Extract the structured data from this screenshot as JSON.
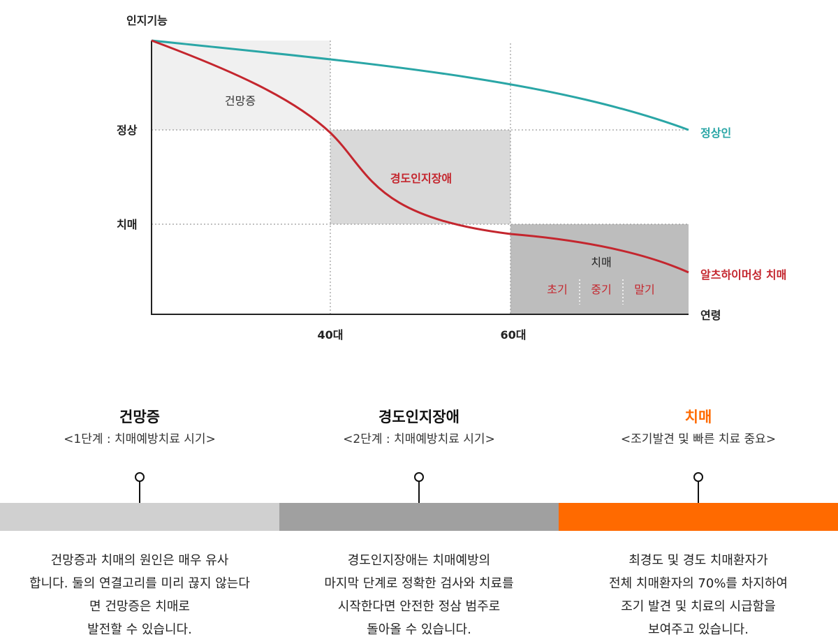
{
  "chart": {
    "y_axis_title": "인지기능",
    "x_axis_title": "연령",
    "y_levels": [
      "정상",
      "치매"
    ],
    "x_ticks": [
      "40대",
      "60대"
    ],
    "regions": {
      "forgetfulness": "건망증",
      "mci": "경도인지장애",
      "dementia": "치매",
      "dementia_stages": [
        "초기",
        "중기",
        "말기"
      ]
    },
    "line_labels": {
      "normal": "정상인",
      "alzheimer": "알츠하이머성 치매"
    },
    "colors": {
      "normal_line": "#2aa6a6",
      "alzheimer_line": "#c4262e",
      "region_light": "#f0f0f0",
      "region_mid": "#d9d9d9",
      "region_dark": "#bdbdbd"
    }
  },
  "stages": [
    {
      "title": "건망증",
      "subtitle": "<1단계 : 치매예방치료 시기>",
      "title_color": "#111111",
      "bar_color": "#d0d0d0",
      "description": [
        "건망증과 치매의 원인은 매우 유사",
        "합니다. 둘의 연결고리를 미리 끊지 않는다",
        "면 건망증은 치매로",
        "발전할 수 있습니다."
      ]
    },
    {
      "title": "경도인지장애",
      "subtitle": "<2단계 : 치매예방치료 시기>",
      "title_color": "#111111",
      "bar_color": "#a0a0a0",
      "description": [
        "경도인지장애는 치매예방의",
        "마지막 단계로 정확한 검사와 치료를",
        "시작한다면 안전한 정삼 범주로",
        "돌아올 수 있습니다."
      ]
    },
    {
      "title": "치매",
      "subtitle": "<조기발견 및 빠른 치료 중요>",
      "title_color": "#ff6a00",
      "bar_color": "#ff6a00",
      "description": [
        "최경도 및 경도 치매환자가",
        "전체 치매환자의 70%를 차지하여",
        "조기 발견 및 치료의 시급함을",
        "보여주고 있습니다."
      ]
    }
  ]
}
